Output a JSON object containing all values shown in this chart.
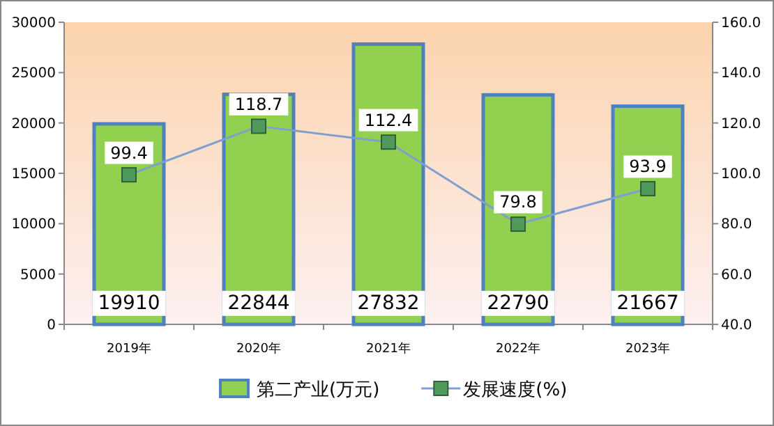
{
  "chart_data": {
    "type": "bar",
    "categories": [
      "2019年",
      "2020年",
      "2021年",
      "2022年",
      "2023年"
    ],
    "series": [
      {
        "name": "第二产业(万元)",
        "color": "#92d050",
        "values": [
          19910,
          22844,
          27832,
          22790,
          21667
        ]
      },
      {
        "name": "发展速度(%)",
        "type": "line",
        "axis": "y2",
        "color": "#7f9fcf",
        "marker": "square",
        "values": [
          99.4,
          118.7,
          112.4,
          79.8,
          93.9
        ]
      }
    ],
    "ylim": [
      0,
      30000
    ],
    "yticks": [
      0,
      5000,
      10000,
      15000,
      20000,
      25000,
      30000
    ],
    "y2lim": [
      40,
      160
    ],
    "y2ticks": [
      {
        "value": 40,
        "label": "40.0"
      },
      {
        "value": 60,
        "label": "60.0"
      },
      {
        "value": 80,
        "label": "80.0"
      },
      {
        "value": 100,
        "label": "100.0"
      },
      {
        "value": 120,
        "label": "120.0"
      },
      {
        "value": 140,
        "label": "140.0"
      },
      {
        "value": 160,
        "label": "160.0"
      }
    ],
    "data_labels": true,
    "legend": "bottom"
  }
}
